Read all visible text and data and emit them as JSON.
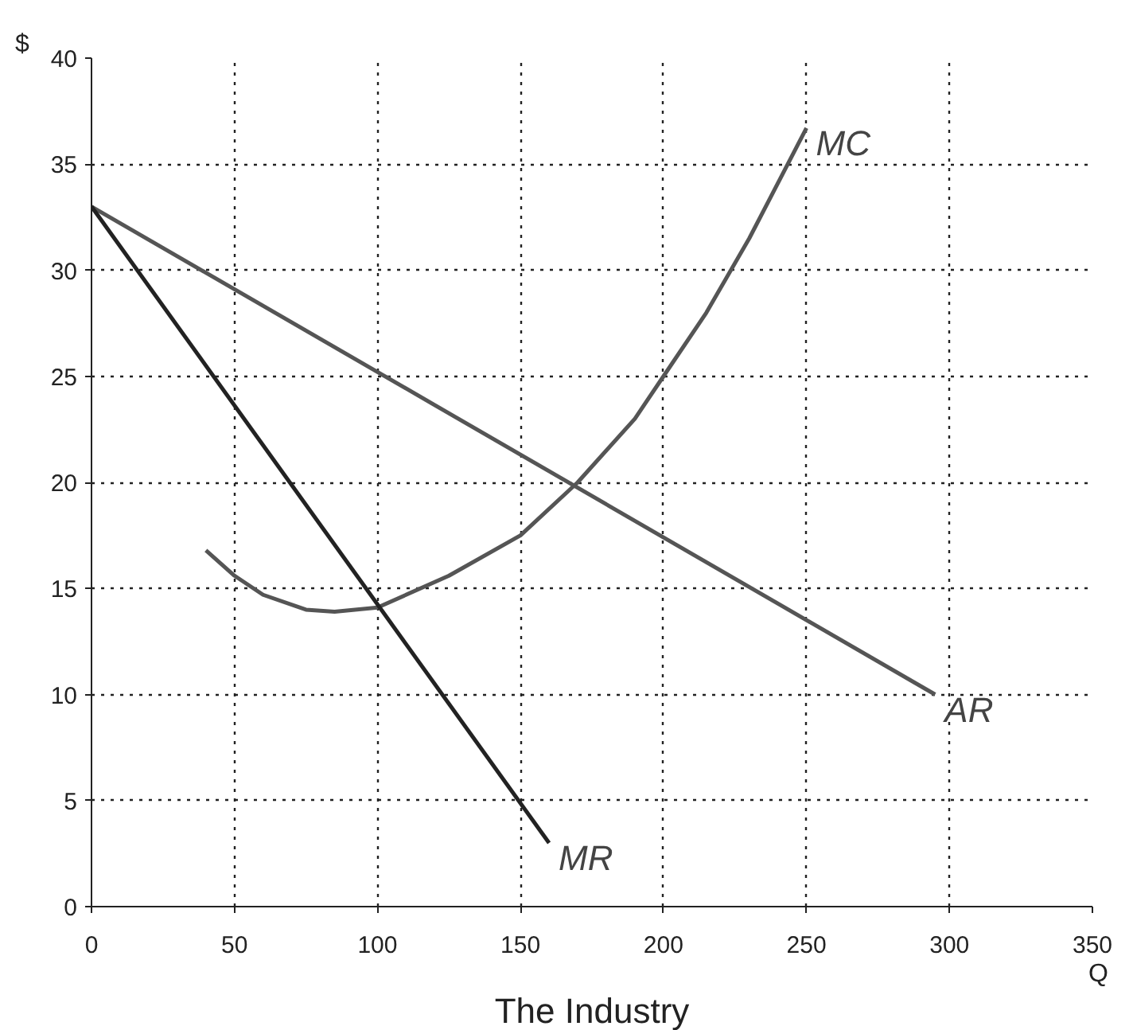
{
  "chart_data": {
    "type": "line",
    "title": "The Industry",
    "xlabel": "Q",
    "ylabel": "$",
    "xlim": [
      0,
      350
    ],
    "ylim": [
      0,
      40
    ],
    "xticks": [
      0,
      50,
      100,
      150,
      200,
      250,
      300,
      350
    ],
    "yticks": [
      0,
      5,
      10,
      15,
      20,
      25,
      30,
      35,
      40
    ],
    "grid": true,
    "line_style": "solid",
    "marker": "none",
    "series": [
      {
        "name": "MC",
        "color": "#555555",
        "x": [
          40,
          50,
          60,
          75,
          85,
          100,
          125,
          150,
          170,
          190,
          200,
          215,
          230,
          250
        ],
        "values": [
          16.8,
          15.6,
          14.7,
          14.0,
          13.9,
          14.1,
          15.6,
          17.5,
          20,
          23,
          25,
          28,
          31.5,
          36.7
        ]
      },
      {
        "name": "AR",
        "color": "#555555",
        "x": [
          0,
          295
        ],
        "values": [
          33,
          10
        ]
      },
      {
        "name": "MR",
        "color": "#222222",
        "x": [
          0,
          160
        ],
        "values": [
          33,
          3
        ]
      }
    ]
  }
}
